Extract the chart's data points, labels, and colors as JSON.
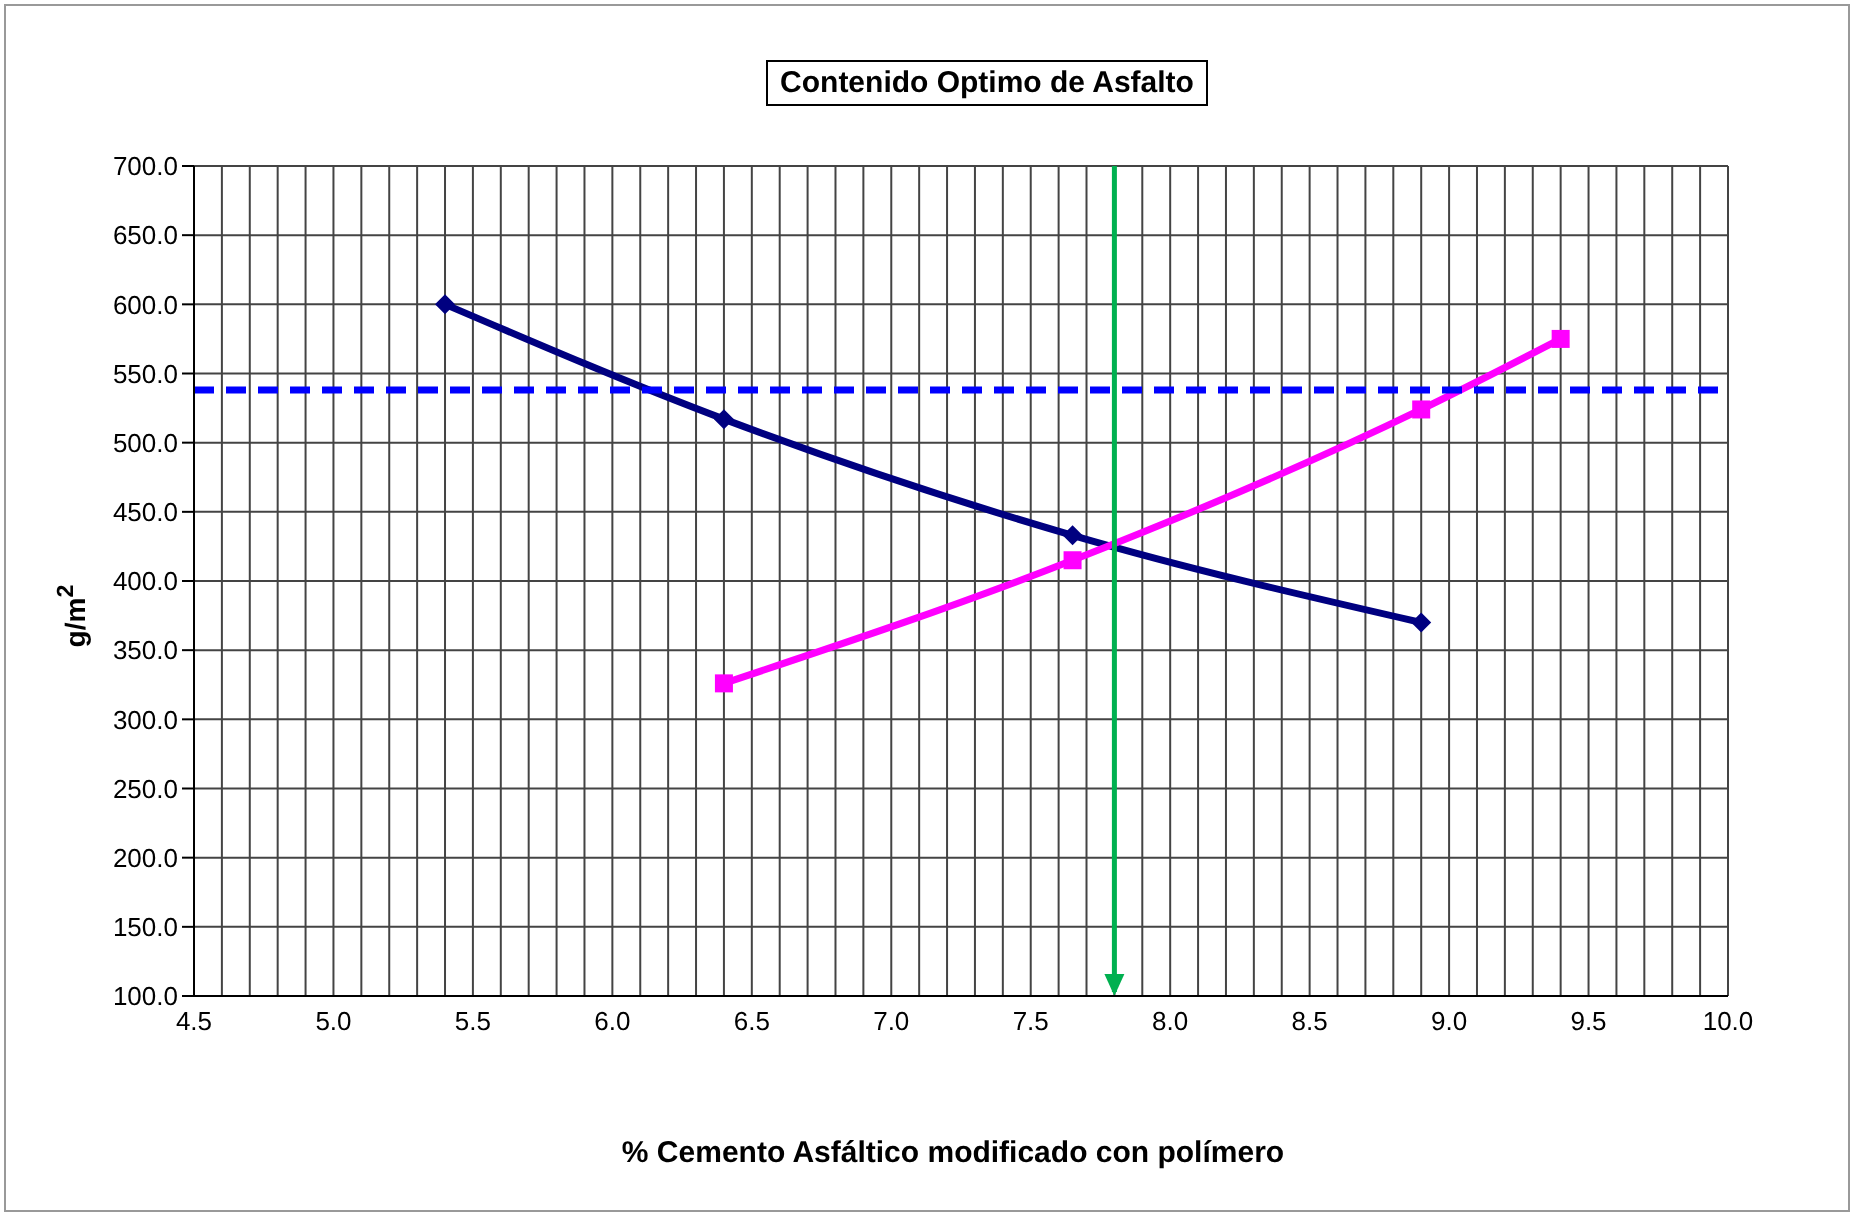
{
  "chart_data": {
    "type": "line",
    "title": "Contenido Optimo de Asfalto",
    "xlabel": "% Cemento Asfáltico modificado con polímero",
    "ylabel": "g/m$^{2}$",
    "series": [
      {
        "x": [
          5.4,
          6.4,
          7.65,
          8.9
        ],
        "values": [
          600,
          517,
          433,
          370
        ],
        "color": "#000080",
        "marker": "diamond"
      },
      {
        "x": [
          6.4,
          7.65,
          8.9,
          9.4
        ],
        "values": [
          326,
          415,
          524,
          575
        ],
        "color": "#ff00ff",
        "marker": "square"
      }
    ],
    "xlim": [
      4.5,
      10
    ],
    "xticks": [
      {
        "value": 4.5,
        "label": "4.5"
      },
      {
        "value": 4.6,
        "label": null
      },
      {
        "value": 4.7,
        "label": null
      },
      {
        "value": 4.8,
        "label": null
      },
      {
        "value": 4.9,
        "label": null
      },
      {
        "value": 5,
        "label": "5.0"
      },
      {
        "value": 5.1,
        "label": null
      },
      {
        "value": 5.2,
        "label": null
      },
      {
        "value": 5.3,
        "label": null
      },
      {
        "value": 5.4,
        "label": null
      },
      {
        "value": 5.5,
        "label": "5.5"
      },
      {
        "value": 5.6,
        "label": null
      },
      {
        "value": 5.7,
        "label": null
      },
      {
        "value": 5.8,
        "label": null
      },
      {
        "value": 5.9,
        "label": null
      },
      {
        "value": 6,
        "label": "6.0"
      },
      {
        "value": 6.1,
        "label": null
      },
      {
        "value": 6.2,
        "label": null
      },
      {
        "value": 6.3,
        "label": null
      },
      {
        "value": 6.4,
        "label": null
      },
      {
        "value": 6.5,
        "label": "6.5"
      },
      {
        "value": 6.6,
        "label": null
      },
      {
        "value": 6.7,
        "label": null
      },
      {
        "value": 6.8,
        "label": null
      },
      {
        "value": 6.9,
        "label": null
      },
      {
        "value": 7,
        "label": "7.0"
      },
      {
        "value": 7.1,
        "label": null
      },
      {
        "value": 7.2,
        "label": null
      },
      {
        "value": 7.3,
        "label": null
      },
      {
        "value": 7.4,
        "label": null
      },
      {
        "value": 7.5,
        "label": "7.5"
      },
      {
        "value": 7.6,
        "label": null
      },
      {
        "value": 7.7,
        "label": null
      },
      {
        "value": 7.8,
        "label": null
      },
      {
        "value": 7.9,
        "label": null
      },
      {
        "value": 8,
        "label": "8.0"
      },
      {
        "value": 8.1,
        "label": null
      },
      {
        "value": 8.2,
        "label": null
      },
      {
        "value": 8.3,
        "label": null
      },
      {
        "value": 8.4,
        "label": null
      },
      {
        "value": 8.5,
        "label": "8.5"
      },
      {
        "value": 8.6,
        "label": null
      },
      {
        "value": 8.7,
        "label": null
      },
      {
        "value": 8.8,
        "label": null
      },
      {
        "value": 8.9,
        "label": null
      },
      {
        "value": 9,
        "label": "9.0"
      },
      {
        "value": 9.1,
        "label": null
      },
      {
        "value": 9.2,
        "label": null
      },
      {
        "value": 9.3,
        "label": null
      },
      {
        "value": 9.4,
        "label": null
      },
      {
        "value": 9.5,
        "label": "9.5"
      },
      {
        "value": 9.6,
        "label": null
      },
      {
        "value": 9.7,
        "label": null
      },
      {
        "value": 9.8,
        "label": null
      },
      {
        "value": 9.9,
        "label": null
      },
      {
        "value": 10,
        "label": "10.0"
      }
    ],
    "ylim": [
      100,
      700
    ],
    "yticks": [
      {
        "value": 100,
        "label": "100.0"
      },
      {
        "value": 150,
        "label": "150.0"
      },
      {
        "value": 200,
        "label": "200.0"
      },
      {
        "value": 250,
        "label": "250.0"
      },
      {
        "value": 300,
        "label": "300.0"
      },
      {
        "value": 350,
        "label": "350.0"
      },
      {
        "value": 400,
        "label": "400.0"
      },
      {
        "value": 450,
        "label": "450.0"
      },
      {
        "value": 500,
        "label": "500.0"
      },
      {
        "value": 550,
        "label": "550.0"
      },
      {
        "value": 600,
        "label": "600.0"
      },
      {
        "value": 650,
        "label": "650.0"
      },
      {
        "value": 700,
        "label": "700.0"
      }
    ],
    "grid": true,
    "ref_lines": [
      {
        "axis": "y",
        "value": 538,
        "color": "#0000ff",
        "line_style": "dashed"
      },
      {
        "axis": "x",
        "value": 7.8,
        "color": "#00b050",
        "line_style": "solid"
      }
    ]
  }
}
